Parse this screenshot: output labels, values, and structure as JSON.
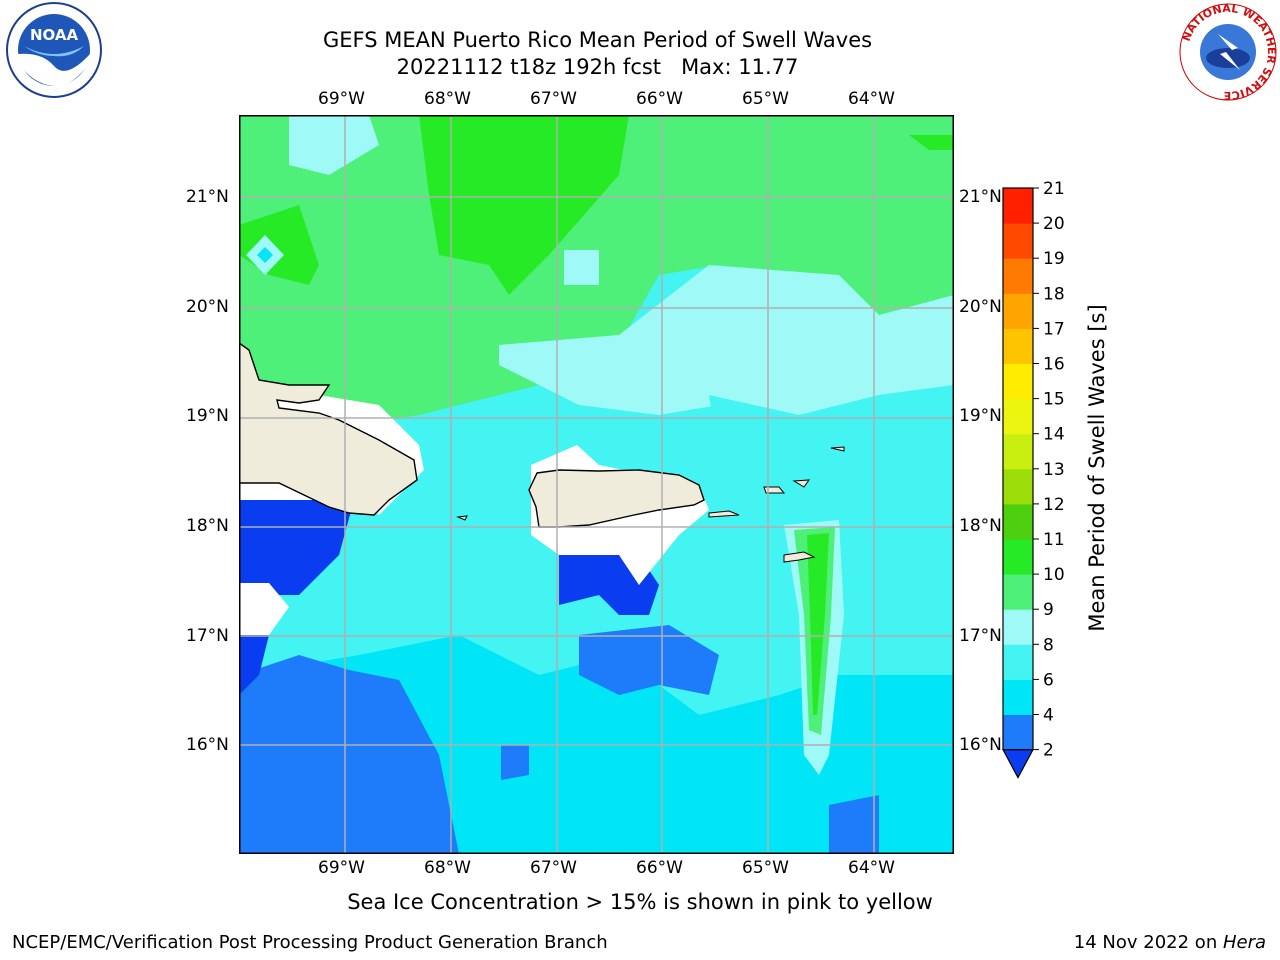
{
  "header": {
    "title_line1": "GEFS MEAN Puerto Rico Mean Period of Swell Waves",
    "title_line2": "20221112 t18z 192h fcst   Max: 11.77"
  },
  "map": {
    "lon_labels": [
      "69°W",
      "68°W",
      "67°W",
      "66°W",
      "65°W",
      "64°W"
    ],
    "lat_labels": [
      "21°N",
      "20°N",
      "19°N",
      "18°N",
      "17°N",
      "16°N"
    ],
    "land_color": "#efecdc",
    "grid_color": "#b0b0b0"
  },
  "colorbar": {
    "label": "Mean Period of Swell Waves [s]",
    "ticks": [
      "2",
      "4",
      "6",
      "8",
      "9",
      "10",
      "11",
      "12",
      "13",
      "14",
      "15",
      "16",
      "17",
      "18",
      "19",
      "20",
      "21"
    ],
    "colors": [
      "#0a3cf0",
      "#1e7cfa",
      "#00e6f6",
      "#43f4f2",
      "#9ff9f6",
      "#4ff07a",
      "#26ea26",
      "#4ecf10",
      "#9cdd0a",
      "#c9ef10",
      "#ebf510",
      "#ffec00",
      "#ffc400",
      "#ffa400",
      "#ff7a00",
      "#ff4a00",
      "#ff2000",
      "#ff0000"
    ]
  },
  "note": "Sea Ice Concentration > 15% is shown in pink to yellow",
  "footer": {
    "left": "NCEP/EMC/Verification Post Processing Product Generation Branch",
    "right_date": "14 Nov 2022 on ",
    "right_host": "Hera"
  },
  "logos": {
    "noaa": "NOAA",
    "nws_ring": "NATIONAL WEATHER SERVICE"
  }
}
